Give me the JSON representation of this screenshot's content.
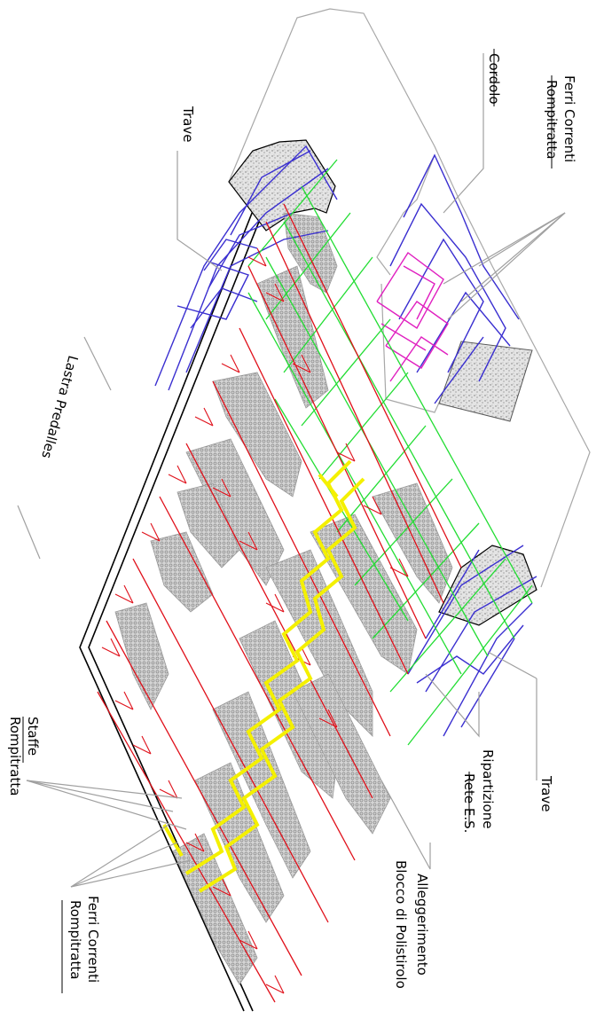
{
  "labels": {
    "ferri_correnti_top": "Ferri Correnti",
    "rompitratta_top": "Rompitratta",
    "cordolo": "Cordolo",
    "trave_top": "Trave",
    "lastra_predalles": "Lastra Predalles",
    "trave_right": "Trave",
    "ripartizione": "Ripartizione",
    "rete_es": "Rete E.S.",
    "alleggerimento": "Alleggerimento",
    "blocco_polistirolo": "Blocco di Polistirolo",
    "staffe": "Staffe",
    "rompitratta_staffe": "Rompitratta",
    "ferri_correnti_bottom": "Ferri Correnti",
    "rompitratta_bottom": "Rompitratta"
  },
  "colors": {
    "concrete_fill": "#c8c8c8",
    "polystyrene_fill": "#b4b4b4",
    "beam_cage": "#3a2fd0",
    "distribution_mesh": "#22dd33",
    "tie_bars": "#e0101a",
    "lattice_stirrups": "#f4f000",
    "ring_beam_cage": "#e020c0",
    "leader_lines": "#a0a0a0",
    "slab_outline": "#000000"
  }
}
